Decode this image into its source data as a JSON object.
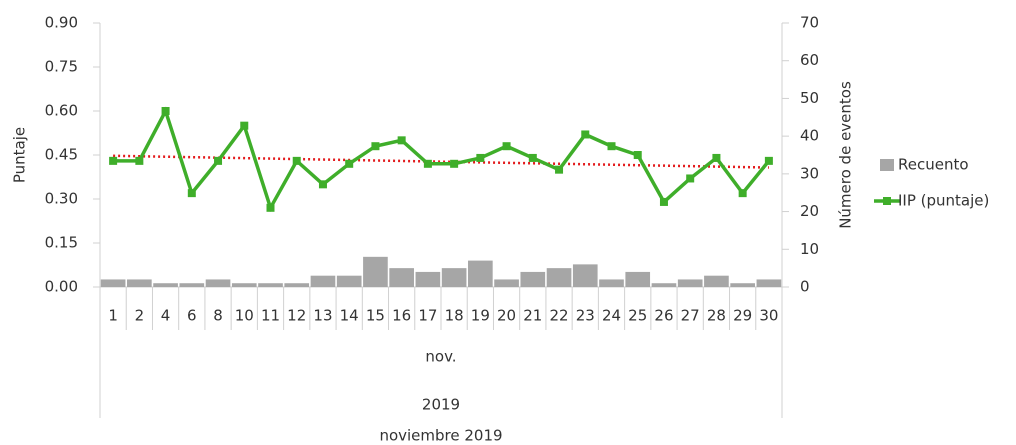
{
  "chart_data": {
    "type": "combo",
    "categories": [
      "1",
      "2",
      "4",
      "6",
      "8",
      "10",
      "11",
      "12",
      "13",
      "14",
      "15",
      "16",
      "17",
      "18",
      "19",
      "20",
      "21",
      "22",
      "23",
      "24",
      "25",
      "26",
      "27",
      "28",
      "29",
      "30"
    ],
    "x_levels": [
      "nov.",
      "2019"
    ],
    "xlabel": "noviembre 2019",
    "ylabel": "Puntaje",
    "y2label": "Número de eventos",
    "ylim": [
      0,
      0.9
    ],
    "yticks": [
      {
        "value": 0,
        "label": "0.00"
      },
      {
        "value": 0.15,
        "label": "0.15"
      },
      {
        "value": 0.3,
        "label": "0.30"
      },
      {
        "value": 0.45,
        "label": "0.45"
      },
      {
        "value": 0.6,
        "label": "0.60"
      },
      {
        "value": 0.75,
        "label": "0.75"
      },
      {
        "value": 0.9,
        "label": "0.90"
      }
    ],
    "y2lim": [
      0,
      70
    ],
    "y2ticks": [
      0,
      10,
      20,
      30,
      40,
      50,
      60,
      70
    ],
    "legend": "right",
    "trendline": {
      "series": 1,
      "color": "#e31a1c"
    },
    "series": [
      {
        "name": "Recuento",
        "type": "bar",
        "axis": "y2",
        "color": "#a6a6a6",
        "values": [
          2,
          2,
          1,
          1,
          2,
          1,
          1,
          1,
          3,
          3,
          8,
          5,
          4,
          5,
          7,
          2,
          4,
          5,
          6,
          2,
          4,
          1,
          2,
          3,
          1,
          2
        ]
      },
      {
        "name": "IIP (puntaje)",
        "type": "line",
        "color": "#3fae2a",
        "values": [
          0.43,
          0.43,
          0.6,
          0.32,
          0.43,
          0.55,
          0.27,
          0.43,
          0.35,
          0.42,
          0.48,
          0.5,
          0.42,
          0.42,
          0.44,
          0.48,
          0.44,
          0.4,
          0.52,
          0.48,
          0.45,
          0.29,
          0.37,
          0.44,
          0.32,
          0.43
        ]
      }
    ]
  }
}
